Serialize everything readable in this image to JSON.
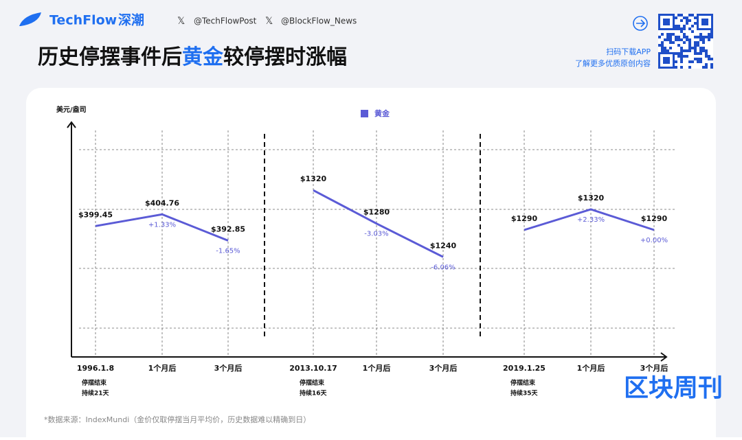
{
  "header": {
    "brand": "TechFlow",
    "brand_cn": "深潮",
    "handles": [
      "@TechFlowPost",
      "@BlockFlow_News"
    ],
    "title_parts": [
      "历史停摆事件后",
      "黄金",
      "较停摆时涨幅"
    ],
    "promo": [
      "扫码下载APP",
      "了解更多优质原创内容"
    ]
  },
  "chart_data": {
    "type": "line",
    "y_label": "美元/盎司",
    "legend": "黄金",
    "color": "#5b5bd6",
    "panels": [
      {
        "categories": [
          "1996.1.8",
          "1个月后",
          "3个月后"
        ],
        "notes": [
          "停摆结束",
          "持续21天"
        ],
        "values": [
          399.45,
          404.76,
          392.85
        ],
        "value_labels": [
          "$399.45",
          "$404.76",
          "$392.85"
        ],
        "changes": [
          null,
          1.33,
          -1.65
        ],
        "change_labels": [
          null,
          "+1.33%",
          "-1.65%"
        ],
        "ylim": [
          340,
          446
        ]
      },
      {
        "categories": [
          "2013.10.17",
          "1个月后",
          "3个月后"
        ],
        "notes": [
          "停摆结束",
          "持续16天"
        ],
        "values": [
          1320,
          1280,
          1240
        ],
        "value_labels": [
          "$1320",
          "$1280",
          "$1240"
        ],
        "changes": [
          null,
          -3.03,
          -6.06
        ],
        "change_labels": [
          null,
          "-3.03%",
          "-6.06%"
        ],
        "ylim": [
          1120,
          1400
        ]
      },
      {
        "categories": [
          "2019.1.25",
          "1个月后",
          "3个月后"
        ],
        "notes": [
          "停摆结束",
          "持续35天"
        ],
        "values": [
          1290,
          1320,
          1290
        ],
        "value_labels": [
          "$1290",
          "$1320",
          "$1290"
        ],
        "changes": [
          null,
          2.33,
          0
        ],
        "change_labels": [
          null,
          "+2.33%",
          "+0.00%"
        ],
        "ylim": [
          1105,
          1445
        ]
      }
    ]
  },
  "footer": "*数据来源：IndexMundi（金价仅取停摆当月平均价，历史数据难以精确到日）",
  "watermark": "区块周刊"
}
